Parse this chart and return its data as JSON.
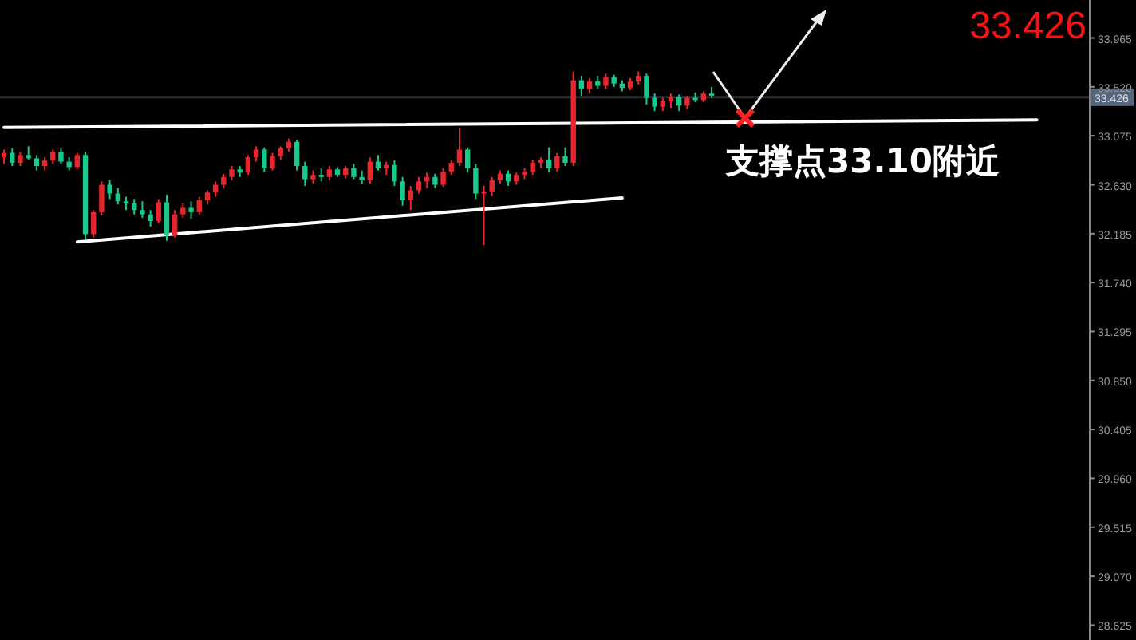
{
  "chart_data": {
    "type": "candlestick",
    "title": "33.426",
    "annotations": [
      "支撑点33.10附近"
    ],
    "categories": [
      null,
      null,
      null,
      null,
      null,
      null,
      null,
      null,
      null,
      null,
      null,
      null,
      null,
      null,
      null,
      null,
      null,
      null,
      null,
      null,
      null,
      null,
      null,
      null,
      null,
      null,
      null,
      null,
      null,
      null,
      null,
      null,
      null,
      null,
      null,
      null,
      null,
      null,
      null,
      null,
      null,
      null,
      null,
      null,
      null,
      null,
      null,
      null,
      null,
      null,
      null,
      null,
      null,
      null,
      null,
      null,
      null,
      null,
      null,
      null,
      null,
      null,
      null,
      null,
      null,
      null,
      null,
      null,
      null,
      null,
      null,
      null,
      null,
      null,
      null,
      null,
      null,
      null,
      null,
      null,
      null,
      null,
      null,
      null,
      null,
      null,
      null,
      null,
      null,
      null,
      null,
      null,
      null,
      null,
      null,
      null,
      null,
      null,
      null,
      null,
      null,
      null,
      null,
      null,
      null,
      null,
      null,
      null,
      null,
      null,
      null,
      null,
      null,
      null,
      null,
      null,
      null,
      null,
      null,
      null,
      null,
      null,
      null,
      null,
      null,
      null,
      null,
      null,
      null,
      null,
      null,
      null,
      null,
      null
    ],
    "ohlc": [
      [
        32.88,
        32.95,
        32.82,
        32.92
      ],
      [
        32.92,
        32.96,
        32.8,
        32.83
      ],
      [
        32.83,
        32.93,
        32.8,
        32.9
      ],
      [
        32.9,
        32.98,
        32.86,
        32.87
      ],
      [
        32.87,
        32.9,
        32.76,
        32.8
      ],
      [
        32.8,
        32.88,
        32.76,
        32.85
      ],
      [
        32.85,
        32.95,
        32.82,
        32.93
      ],
      [
        32.93,
        32.96,
        32.82,
        32.84
      ],
      [
        32.84,
        32.88,
        32.76,
        32.79
      ],
      [
        32.79,
        32.92,
        32.77,
        32.9
      ],
      [
        32.9,
        32.93,
        32.13,
        32.18
      ],
      [
        32.18,
        32.4,
        32.15,
        32.38
      ],
      [
        32.38,
        32.66,
        32.35,
        32.63
      ],
      [
        32.63,
        32.67,
        32.5,
        32.55
      ],
      [
        32.55,
        32.6,
        32.45,
        32.48
      ],
      [
        32.48,
        32.52,
        32.4,
        32.46
      ],
      [
        32.46,
        32.5,
        32.36,
        32.4
      ],
      [
        32.4,
        32.48,
        32.33,
        32.36
      ],
      [
        32.36,
        32.4,
        32.25,
        32.3
      ],
      [
        32.3,
        32.5,
        32.28,
        32.47
      ],
      [
        32.47,
        32.54,
        32.12,
        32.17
      ],
      [
        32.17,
        32.4,
        32.15,
        32.36
      ],
      [
        32.36,
        32.46,
        32.33,
        32.42
      ],
      [
        32.42,
        32.48,
        32.32,
        32.38
      ],
      [
        32.38,
        32.52,
        32.36,
        32.49
      ],
      [
        32.49,
        32.58,
        32.45,
        32.56
      ],
      [
        32.56,
        32.66,
        32.52,
        32.63
      ],
      [
        32.63,
        32.73,
        32.6,
        32.7
      ],
      [
        32.7,
        32.8,
        32.67,
        32.77
      ],
      [
        32.77,
        32.8,
        32.7,
        32.74
      ],
      [
        32.74,
        32.9,
        32.72,
        32.88
      ],
      [
        32.88,
        32.98,
        32.84,
        32.95
      ],
      [
        32.95,
        32.97,
        32.75,
        32.78
      ],
      [
        32.78,
        32.92,
        32.76,
        32.89
      ],
      [
        32.89,
        32.98,
        32.86,
        32.96
      ],
      [
        32.96,
        33.05,
        32.93,
        33.02
      ],
      [
        33.02,
        33.04,
        32.76,
        32.8
      ],
      [
        32.8,
        32.84,
        32.62,
        32.68
      ],
      [
        32.68,
        32.76,
        32.64,
        32.72
      ],
      [
        32.72,
        32.78,
        32.66,
        32.7
      ],
      [
        32.7,
        32.8,
        32.67,
        32.77
      ],
      [
        32.77,
        32.79,
        32.7,
        32.72
      ],
      [
        32.72,
        32.8,
        32.69,
        32.78
      ],
      [
        32.78,
        32.82,
        32.68,
        32.7
      ],
      [
        32.7,
        32.76,
        32.64,
        32.67
      ],
      [
        32.67,
        32.88,
        32.64,
        32.84
      ],
      [
        32.84,
        32.9,
        32.76,
        32.78
      ],
      [
        32.78,
        32.84,
        32.72,
        32.81
      ],
      [
        32.81,
        32.85,
        32.62,
        32.66
      ],
      [
        32.66,
        32.7,
        32.44,
        32.49
      ],
      [
        32.49,
        32.62,
        32.4,
        32.58
      ],
      [
        32.58,
        32.7,
        32.55,
        32.66
      ],
      [
        32.66,
        32.74,
        32.6,
        32.7
      ],
      [
        32.7,
        32.73,
        32.6,
        32.63
      ],
      [
        32.63,
        32.78,
        32.61,
        32.75
      ],
      [
        32.75,
        32.85,
        32.72,
        32.83
      ],
      [
        32.83,
        33.15,
        32.8,
        32.95
      ],
      [
        32.95,
        32.97,
        32.74,
        32.78
      ],
      [
        32.78,
        32.82,
        32.5,
        32.55
      ],
      [
        32.55,
        32.62,
        32.08,
        32.57
      ],
      [
        32.57,
        32.7,
        32.53,
        32.67
      ],
      [
        32.67,
        32.76,
        32.64,
        32.73
      ],
      [
        32.73,
        32.76,
        32.62,
        32.66
      ],
      [
        32.66,
        32.74,
        32.63,
        32.72
      ],
      [
        32.72,
        32.78,
        32.68,
        32.75
      ],
      [
        32.75,
        32.86,
        32.72,
        32.83
      ],
      [
        32.83,
        32.88,
        32.78,
        32.86
      ],
      [
        32.86,
        32.97,
        32.74,
        32.78
      ],
      [
        32.78,
        32.92,
        32.75,
        32.89
      ],
      [
        32.89,
        32.97,
        32.8,
        32.83
      ],
      [
        32.83,
        33.66,
        32.8,
        33.58
      ],
      [
        33.58,
        33.62,
        33.44,
        33.5
      ],
      [
        33.5,
        33.6,
        33.46,
        33.57
      ],
      [
        33.57,
        33.62,
        33.5,
        33.53
      ],
      [
        33.53,
        33.64,
        33.5,
        33.61
      ],
      [
        33.61,
        33.63,
        33.52,
        33.55
      ],
      [
        33.55,
        33.58,
        33.48,
        33.51
      ],
      [
        33.51,
        33.6,
        33.49,
        33.57
      ],
      [
        33.57,
        33.66,
        33.54,
        33.62
      ],
      [
        33.62,
        33.64,
        33.36,
        33.42
      ],
      [
        33.42,
        33.46,
        33.3,
        33.34
      ],
      [
        33.34,
        33.42,
        33.3,
        33.39
      ],
      [
        33.39,
        33.46,
        33.33,
        33.43
      ],
      [
        33.43,
        33.45,
        33.3,
        33.35
      ],
      [
        33.35,
        33.44,
        33.32,
        33.42
      ],
      [
        33.42,
        33.47,
        33.38,
        33.4
      ],
      [
        33.4,
        33.48,
        33.38,
        33.46
      ],
      [
        33.46,
        33.52,
        33.42,
        33.44
      ],
      null,
      null,
      null,
      null,
      null,
      null,
      null,
      null,
      null,
      null,
      null,
      null,
      null,
      null,
      null,
      null,
      null,
      null,
      null,
      null,
      null,
      null,
      null,
      null,
      null,
      null,
      null,
      null,
      null,
      null,
      null,
      null,
      null,
      null,
      null,
      null,
      null,
      null,
      null,
      null,
      null,
      null,
      null,
      null,
      null,
      null
    ],
    "colors": [
      "#e8262d",
      "#19c98a",
      "#e8262d",
      "#19c98a",
      "#19c98a",
      "#e8262d",
      "#e8262d",
      "#19c98a",
      "#19c98a",
      "#e8262d",
      "#19c98a",
      "#e8262d",
      "#e8262d",
      "#19c98a",
      "#19c98a",
      "#19c98a",
      "#19c98a",
      "#19c98a",
      "#19c98a",
      "#e8262d",
      "#19c98a",
      "#e8262d",
      "#e8262d",
      "#19c98a",
      "#e8262d",
      "#e8262d",
      "#e8262d",
      "#e8262d",
      "#e8262d",
      "#19c98a",
      "#e8262d",
      "#e8262d",
      "#19c98a",
      "#e8262d",
      "#e8262d",
      "#e8262d",
      "#19c98a",
      "#19c98a",
      "#e8262d",
      "#19c98a",
      "#e8262d",
      "#19c98a",
      "#e8262d",
      "#19c98a",
      "#19c98a",
      "#e8262d",
      "#19c98a",
      "#e8262d",
      "#19c98a",
      "#19c98a",
      "#e8262d",
      "#e8262d",
      "#e8262d",
      "#19c98a",
      "#e8262d",
      "#e8262d",
      "#e8262d",
      "#19c98a",
      "#19c98a",
      "#e8262d",
      "#e8262d",
      "#e8262d",
      "#19c98a",
      "#e8262d",
      "#e8262d",
      "#e8262d",
      "#e8262d",
      "#19c98a",
      "#e8262d",
      "#19c98a",
      "#e8262d",
      "#19c98a",
      "#e8262d",
      "#19c98a",
      "#e8262d",
      "#19c98a",
      "#19c98a",
      "#e8262d",
      "#e8262d",
      "#19c98a",
      "#19c98a",
      "#e8262d",
      "#e8262d",
      "#19c98a",
      "#e8262d",
      "#19c98a",
      "#e8262d",
      "#19c98a",
      null,
      null,
      null,
      null,
      null,
      null,
      null,
      null,
      null,
      null,
      null,
      null,
      null,
      null,
      null,
      null,
      null,
      null,
      null,
      null,
      null,
      null,
      null,
      null,
      null,
      null,
      null,
      null,
      null,
      null,
      null,
      null,
      null,
      null,
      null,
      null,
      null,
      null,
      null,
      null,
      null,
      null,
      null,
      null,
      null,
      null
    ],
    "series": [
      {
        "type": "line",
        "color": "#ffffff",
        "values": [
          33.15,
          null,
          null,
          null,
          null,
          null,
          null,
          null,
          null,
          null,
          null,
          null,
          null,
          null,
          null,
          null,
          null,
          null,
          null,
          null,
          null,
          null,
          null,
          null,
          null,
          null,
          null,
          null,
          null,
          null,
          null,
          null,
          null,
          null,
          null,
          null,
          null,
          null,
          null,
          null,
          null,
          null,
          null,
          null,
          null,
          null,
          null,
          null,
          null,
          null,
          null,
          null,
          null,
          null,
          null,
          null,
          null,
          null,
          null,
          null,
          null,
          null,
          null,
          null,
          null,
          null,
          null,
          null,
          null,
          null,
          null,
          null,
          null,
          null,
          null,
          null,
          null,
          null,
          null,
          null,
          null,
          null,
          null,
          null,
          null,
          null,
          null,
          null,
          null,
          null,
          null,
          null,
          null,
          null,
          null,
          null,
          null,
          null,
          null,
          null,
          null,
          null,
          null,
          null,
          null,
          null,
          null,
          null,
          null,
          null,
          null,
          null,
          null,
          null,
          null,
          null,
          null,
          null,
          null,
          null,
          null,
          null,
          null,
          null,
          null,
          null,
          null,
          33.22,
          null,
          null,
          null,
          null,
          null,
          null
        ]
      },
      {
        "type": "line",
        "color": "#ffffff",
        "values": [
          null,
          null,
          null,
          null,
          null,
          null,
          null,
          null,
          null,
          32.11,
          null,
          null,
          null,
          null,
          null,
          null,
          null,
          null,
          null,
          null,
          null,
          null,
          null,
          null,
          null,
          null,
          null,
          null,
          null,
          null,
          null,
          null,
          null,
          null,
          null,
          null,
          null,
          null,
          null,
          null,
          null,
          null,
          null,
          null,
          null,
          null,
          null,
          null,
          null,
          null,
          null,
          null,
          null,
          null,
          null,
          null,
          null,
          null,
          null,
          null,
          null,
          null,
          null,
          null,
          null,
          null,
          null,
          null,
          null,
          null,
          null,
          null,
          null,
          null,
          null,
          null,
          32.51,
          null,
          null,
          null,
          null,
          null,
          null,
          null,
          null,
          null,
          null,
          null,
          null,
          null,
          null,
          null,
          null,
          null,
          null,
          null,
          null,
          null,
          null,
          null,
          null,
          null,
          null,
          null,
          null,
          null,
          null,
          null,
          null,
          null,
          null,
          null,
          null,
          null,
          null,
          null,
          null,
          null,
          null,
          null,
          null,
          null,
          null,
          null,
          null,
          null,
          null,
          null,
          null,
          null,
          null,
          null,
          null,
          null
        ]
      }
    ],
    "ref_lines": [
      {
        "axis": "y",
        "value": 33.426,
        "label": "33.426",
        "color": "#2a3038"
      }
    ],
    "ylim": [
      28.49,
      34.31
    ],
    "yticks": [
      33.965,
      {
        "value": 33.52,
        "label": "33.520"
      },
      33.075,
      {
        "value": 32.63,
        "label": "32.630"
      },
      32.185,
      {
        "value": 31.74,
        "label": "31.740"
      },
      31.295,
      {
        "value": 30.85,
        "label": "30.850"
      },
      30.405,
      {
        "value": 29.96,
        "label": "29.960"
      },
      29.515,
      {
        "value": 29.07,
        "label": "29.070"
      },
      28.625
    ]
  }
}
